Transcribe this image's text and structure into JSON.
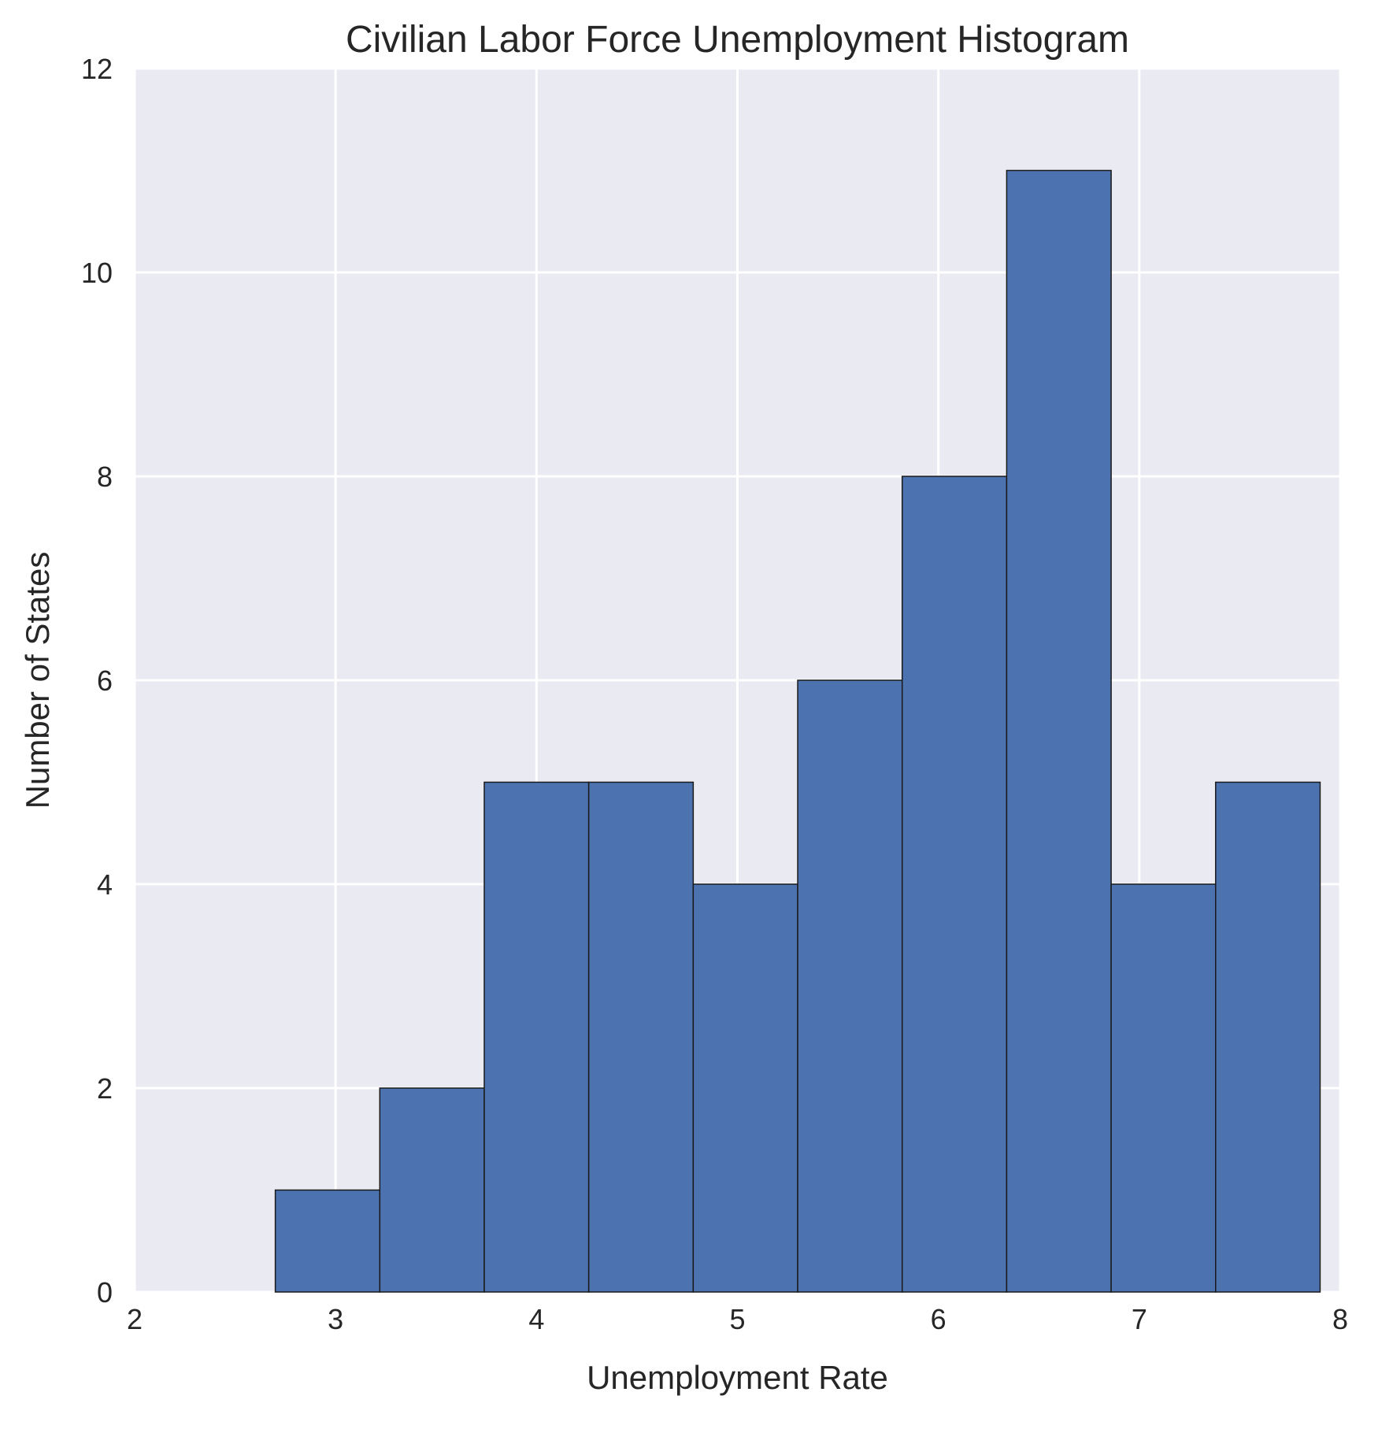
{
  "chart_data": {
    "type": "bar",
    "title": "Civilian Labor Force Unemployment Histogram",
    "xlabel": "Unemployment Rate",
    "ylabel": "Number of States",
    "xlim": [
      2,
      8
    ],
    "ylim": [
      0,
      12
    ],
    "xticks": [
      "2",
      "3",
      "4",
      "5",
      "6",
      "7",
      "8"
    ],
    "yticks": [
      "0",
      "2",
      "4",
      "6",
      "8",
      "10",
      "12"
    ],
    "bins": [
      {
        "x0": 2.7,
        "x1": 3.22,
        "count": 1
      },
      {
        "x0": 3.22,
        "x1": 3.74,
        "count": 2
      },
      {
        "x0": 3.74,
        "x1": 4.26,
        "count": 5
      },
      {
        "x0": 4.26,
        "x1": 4.78,
        "count": 5
      },
      {
        "x0": 4.78,
        "x1": 5.3,
        "count": 4
      },
      {
        "x0": 5.3,
        "x1": 5.82,
        "count": 6
      },
      {
        "x0": 5.82,
        "x1": 6.34,
        "count": 8
      },
      {
        "x0": 6.34,
        "x1": 6.86,
        "count": 11
      },
      {
        "x0": 6.86,
        "x1": 7.38,
        "count": 4
      },
      {
        "x0": 7.38,
        "x1": 7.9,
        "count": 5
      }
    ],
    "grid": true,
    "colors": {
      "bar_fill": "#4c72b0",
      "bar_edge": "#1a1a1a",
      "plot_background": "#eaeaf2",
      "grid": "#ffffff"
    }
  }
}
